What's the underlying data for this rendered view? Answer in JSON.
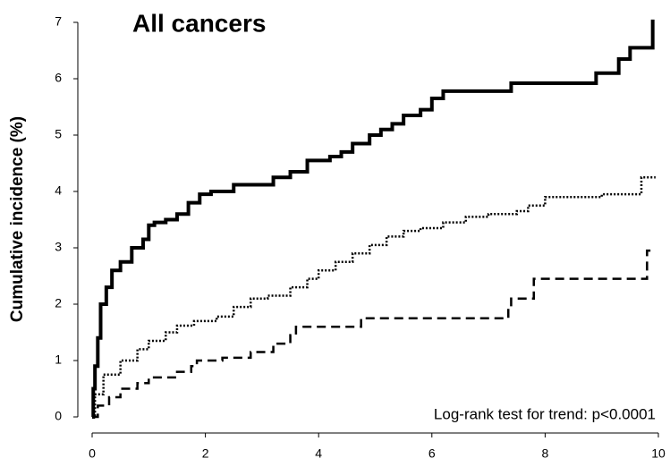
{
  "chart_data": {
    "type": "line",
    "step": "post",
    "title": "All cancers",
    "y_label": "Cumulative incidence (%)",
    "annotation": "Log-rank test for trend: p<0.0001",
    "xlim": [
      0,
      10
    ],
    "xticks": [
      0,
      2,
      4,
      6,
      8,
      10
    ],
    "ylim": [
      0,
      7
    ],
    "yticks": [
      0,
      1,
      2,
      3,
      4,
      5,
      6,
      7
    ],
    "grid": false,
    "series": [
      {
        "color": "#000000",
        "style": "solid",
        "x": [
          0,
          0.02,
          0.05,
          0.1,
          0.15,
          0.25,
          0.35,
          0.5,
          0.7,
          0.9,
          1.0,
          1.1,
          1.3,
          1.5,
          1.7,
          1.9,
          2.1,
          2.5,
          3.2,
          3.5,
          3.8,
          4.2,
          4.4,
          4.6,
          4.9,
          5.1,
          5.3,
          5.5,
          5.8,
          6.0,
          6.2,
          7.4,
          8.9,
          9.3,
          9.5,
          9.85,
          9.9
        ],
        "values": [
          0,
          0.5,
          0.9,
          1.4,
          2.0,
          2.3,
          2.6,
          2.75,
          3.0,
          3.15,
          3.4,
          3.45,
          3.5,
          3.6,
          3.8,
          3.95,
          4.0,
          4.12,
          4.25,
          4.35,
          4.55,
          4.62,
          4.7,
          4.85,
          5.0,
          5.1,
          5.2,
          5.35,
          5.45,
          5.65,
          5.78,
          5.92,
          6.1,
          6.35,
          6.55,
          6.55,
          7.05
        ]
      },
      {
        "color": "#000000",
        "style": "dotted",
        "x": [
          0,
          0.05,
          0.2,
          0.5,
          0.8,
          1.0,
          1.3,
          1.5,
          1.8,
          2.2,
          2.5,
          2.8,
          3.1,
          3.5,
          3.8,
          4.0,
          4.3,
          4.6,
          4.9,
          5.2,
          5.5,
          5.8,
          6.2,
          6.6,
          7.0,
          7.5,
          7.7,
          8.0,
          9.0,
          9.7,
          9.95
        ],
        "values": [
          0,
          0.4,
          0.75,
          1.0,
          1.2,
          1.35,
          1.5,
          1.62,
          1.7,
          1.78,
          1.95,
          2.1,
          2.15,
          2.3,
          2.45,
          2.6,
          2.75,
          2.9,
          3.05,
          3.2,
          3.3,
          3.35,
          3.45,
          3.55,
          3.6,
          3.65,
          3.75,
          3.9,
          3.95,
          4.25,
          4.25
        ]
      },
      {
        "color": "#000000",
        "style": "dashed",
        "x": [
          0,
          0.1,
          0.3,
          0.5,
          0.8,
          1.0,
          1.5,
          1.75,
          1.85,
          2.3,
          2.8,
          3.2,
          3.5,
          3.6,
          4.75,
          7.35,
          7.4,
          7.8,
          9.8,
          9.95
        ],
        "values": [
          0,
          0.2,
          0.35,
          0.5,
          0.6,
          0.7,
          0.8,
          0.9,
          1.0,
          1.05,
          1.15,
          1.3,
          1.45,
          1.6,
          1.75,
          1.95,
          2.1,
          2.45,
          2.95,
          2.95
        ]
      }
    ]
  }
}
